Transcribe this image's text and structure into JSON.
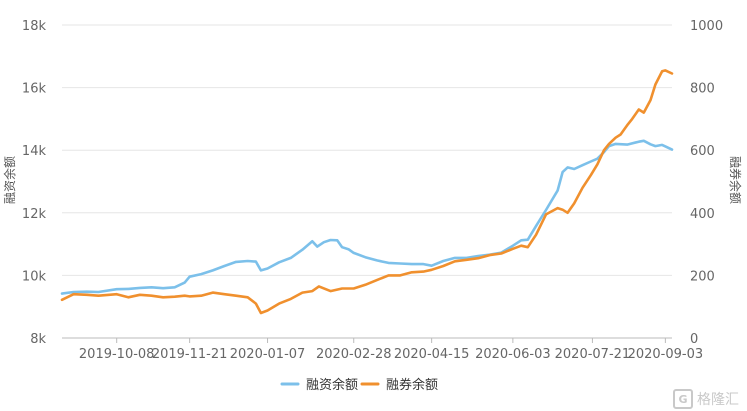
{
  "chart_data": {
    "type": "line",
    "title": "",
    "x_ticks": [
      "2019-10-08",
      "2019-11-21",
      "2020-01-07",
      "2020-02-28",
      "2020-04-15",
      "2020-06-03",
      "2020-07-21",
      "2020-09-03"
    ],
    "x_range": [
      "2019-09-05",
      "2020-09-07"
    ],
    "y_left": {
      "label": "融资余额",
      "ticks": [
        "8k",
        "10k",
        "12k",
        "14k",
        "16k",
        "18k"
      ],
      "range": [
        8000,
        18000
      ]
    },
    "y_right": {
      "label": "融券余额",
      "ticks": [
        "0",
        "200",
        "400",
        "600",
        "800",
        "1000"
      ],
      "range": [
        0,
        1000
      ]
    },
    "legend_position": "bottom-center",
    "series": [
      {
        "name": "融资余额",
        "axis": "left",
        "color": "#7cc0ea",
        "points": [
          [
            "2019-09-05",
            9420
          ],
          [
            "2019-09-12",
            9470
          ],
          [
            "2019-09-20",
            9480
          ],
          [
            "2019-09-27",
            9470
          ],
          [
            "2019-10-08",
            9560
          ],
          [
            "2019-10-15",
            9570
          ],
          [
            "2019-10-22",
            9600
          ],
          [
            "2019-10-29",
            9620
          ],
          [
            "2019-11-05",
            9590
          ],
          [
            "2019-11-12",
            9620
          ],
          [
            "2019-11-18",
            9770
          ],
          [
            "2019-11-21",
            9960
          ],
          [
            "2019-11-28",
            10040
          ],
          [
            "2019-12-05",
            10160
          ],
          [
            "2019-12-12",
            10300
          ],
          [
            "2019-12-19",
            10430
          ],
          [
            "2019-12-26",
            10460
          ],
          [
            "2019-12-31",
            10440
          ],
          [
            "2020-01-03",
            10160
          ],
          [
            "2020-01-07",
            10220
          ],
          [
            "2020-01-14",
            10420
          ],
          [
            "2020-01-21",
            10560
          ],
          [
            "2020-01-28",
            10820
          ],
          [
            "2020-02-03",
            11090
          ],
          [
            "2020-02-06",
            10920
          ],
          [
            "2020-02-10",
            11060
          ],
          [
            "2020-02-14",
            11130
          ],
          [
            "2020-02-18",
            11120
          ],
          [
            "2020-02-21",
            10900
          ],
          [
            "2020-02-25",
            10830
          ],
          [
            "2020-02-28",
            10720
          ],
          [
            "2020-03-06",
            10580
          ],
          [
            "2020-03-13",
            10480
          ],
          [
            "2020-03-20",
            10400
          ],
          [
            "2020-03-27",
            10380
          ],
          [
            "2020-04-03",
            10360
          ],
          [
            "2020-04-10",
            10360
          ],
          [
            "2020-04-15",
            10310
          ],
          [
            "2020-04-22",
            10460
          ],
          [
            "2020-04-29",
            10560
          ],
          [
            "2020-05-06",
            10560
          ],
          [
            "2020-05-13",
            10620
          ],
          [
            "2020-05-20",
            10660
          ],
          [
            "2020-05-27",
            10730
          ],
          [
            "2020-06-03",
            10950
          ],
          [
            "2020-06-08",
            11120
          ],
          [
            "2020-06-12",
            11140
          ],
          [
            "2020-06-17",
            11580
          ],
          [
            "2020-06-23",
            12090
          ],
          [
            "2020-06-30",
            12710
          ],
          [
            "2020-07-03",
            13300
          ],
          [
            "2020-07-06",
            13450
          ],
          [
            "2020-07-10",
            13400
          ],
          [
            "2020-07-15",
            13520
          ],
          [
            "2020-07-20",
            13640
          ],
          [
            "2020-07-24",
            13730
          ],
          [
            "2020-07-28",
            13940
          ],
          [
            "2020-07-31",
            14130
          ],
          [
            "2020-08-04",
            14200
          ],
          [
            "2020-08-11",
            14180
          ],
          [
            "2020-08-18",
            14270
          ],
          [
            "2020-08-21",
            14300
          ],
          [
            "2020-08-25",
            14190
          ],
          [
            "2020-08-28",
            14130
          ],
          [
            "2020-09-01",
            14170
          ],
          [
            "2020-09-03",
            14120
          ],
          [
            "2020-09-07",
            14020
          ]
        ]
      },
      {
        "name": "融券余额",
        "axis": "right",
        "color": "#f0902e",
        "points": [
          [
            "2019-09-05",
            122
          ],
          [
            "2019-09-12",
            140
          ],
          [
            "2019-09-20",
            138
          ],
          [
            "2019-09-27",
            135
          ],
          [
            "2019-10-08",
            140
          ],
          [
            "2019-10-15",
            130
          ],
          [
            "2019-10-22",
            138
          ],
          [
            "2019-10-29",
            135
          ],
          [
            "2019-11-05",
            130
          ],
          [
            "2019-11-12",
            132
          ],
          [
            "2019-11-18",
            135
          ],
          [
            "2019-11-21",
            133
          ],
          [
            "2019-11-28",
            135
          ],
          [
            "2019-12-05",
            145
          ],
          [
            "2019-12-12",
            140
          ],
          [
            "2019-12-19",
            135
          ],
          [
            "2019-12-26",
            130
          ],
          [
            "2019-12-31",
            110
          ],
          [
            "2020-01-03",
            80
          ],
          [
            "2020-01-07",
            88
          ],
          [
            "2020-01-14",
            110
          ],
          [
            "2020-01-21",
            125
          ],
          [
            "2020-01-28",
            145
          ],
          [
            "2020-02-03",
            150
          ],
          [
            "2020-02-07",
            165
          ],
          [
            "2020-02-14",
            150
          ],
          [
            "2020-02-21",
            158
          ],
          [
            "2020-02-28",
            158
          ],
          [
            "2020-03-06",
            170
          ],
          [
            "2020-03-13",
            185
          ],
          [
            "2020-03-20",
            200
          ],
          [
            "2020-03-27",
            200
          ],
          [
            "2020-04-03",
            210
          ],
          [
            "2020-04-10",
            212
          ],
          [
            "2020-04-15",
            218
          ],
          [
            "2020-04-22",
            230
          ],
          [
            "2020-04-29",
            245
          ],
          [
            "2020-05-06",
            250
          ],
          [
            "2020-05-13",
            255
          ],
          [
            "2020-05-20",
            265
          ],
          [
            "2020-05-27",
            270
          ],
          [
            "2020-06-03",
            285
          ],
          [
            "2020-06-08",
            295
          ],
          [
            "2020-06-12",
            290
          ],
          [
            "2020-06-17",
            330
          ],
          [
            "2020-06-23",
            395
          ],
          [
            "2020-06-30",
            415
          ],
          [
            "2020-07-03",
            410
          ],
          [
            "2020-07-06",
            400
          ],
          [
            "2020-07-10",
            430
          ],
          [
            "2020-07-15",
            480
          ],
          [
            "2020-07-20",
            520
          ],
          [
            "2020-07-24",
            555
          ],
          [
            "2020-07-28",
            600
          ],
          [
            "2020-07-31",
            620
          ],
          [
            "2020-08-04",
            640
          ],
          [
            "2020-08-07",
            650
          ],
          [
            "2020-08-11",
            680
          ],
          [
            "2020-08-14",
            700
          ],
          [
            "2020-08-18",
            730
          ],
          [
            "2020-08-21",
            720
          ],
          [
            "2020-08-25",
            760
          ],
          [
            "2020-08-28",
            810
          ],
          [
            "2020-09-01",
            852
          ],
          [
            "2020-09-03",
            855
          ],
          [
            "2020-09-07",
            845
          ]
        ]
      }
    ]
  },
  "watermark": {
    "icon_glyph": "G",
    "text": "格隆汇"
  }
}
